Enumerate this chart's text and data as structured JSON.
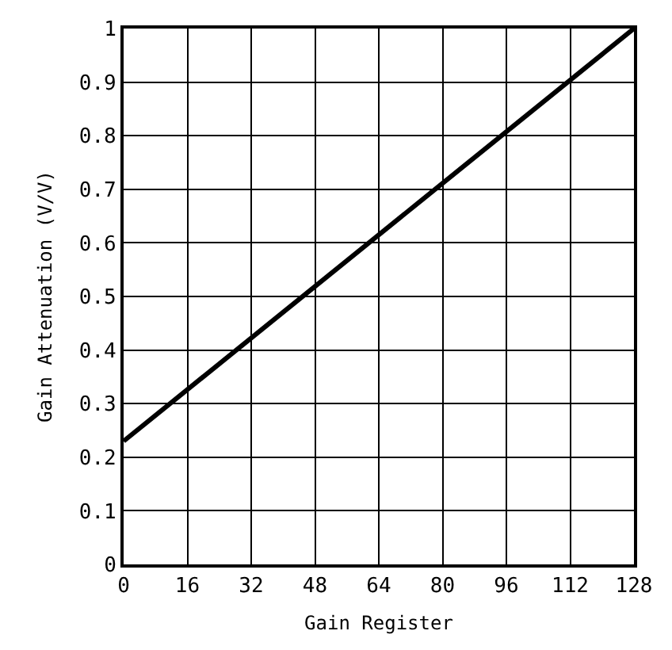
{
  "chart_data": {
    "type": "line",
    "xlabel": "Gain Register",
    "ylabel": "Gain Attenuation (V/V)",
    "x": [
      0,
      128
    ],
    "series": [
      {
        "color": "#000000",
        "values": [
          0.23,
          1.0
        ]
      }
    ],
    "xlim": [
      0,
      128
    ],
    "xticks": [
      0,
      16,
      32,
      48,
      64,
      80,
      96,
      112,
      128
    ],
    "ylim": [
      0,
      1
    ],
    "yticks": [
      0,
      0.1,
      0.2,
      0.3,
      0.4,
      0.5,
      0.6,
      0.7,
      0.8,
      0.9,
      1
    ],
    "grid": true,
    "marker": "none",
    "line_style": "solid"
  }
}
